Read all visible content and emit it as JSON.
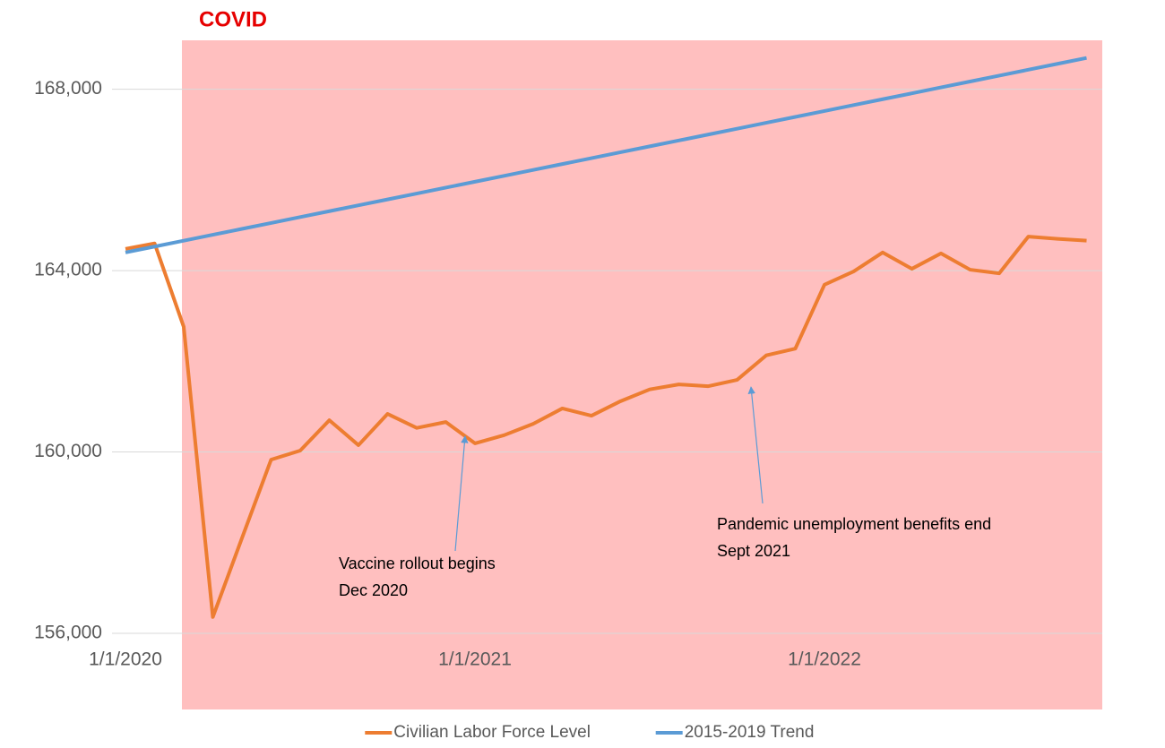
{
  "chart_data": {
    "type": "line",
    "title": "COVID",
    "categories": [
      "1/1/2020",
      null,
      null,
      null,
      null,
      null,
      null,
      null,
      null,
      null,
      null,
      null,
      "1/1/2021",
      null,
      null,
      null,
      null,
      null,
      null,
      null,
      null,
      null,
      null,
      null,
      "1/1/2022",
      null,
      null,
      null,
      null,
      null,
      null,
      null,
      null,
      null
    ],
    "series": [
      {
        "name": "Civilian Labor Force Level",
        "color": "#ed7d31",
        "values": [
          164480,
          164600,
          162760,
          156360,
          158100,
          159830,
          160030,
          160700,
          160150,
          160840,
          160530,
          160660,
          160190,
          160370,
          160620,
          160960,
          160800,
          161120,
          161380,
          161490,
          161450,
          161590,
          162130,
          162280,
          163690,
          163980,
          164400,
          164040,
          164380,
          164020,
          163940,
          164750,
          164700,
          164660
        ]
      },
      {
        "name": "2015-2019 Trend",
        "color": "#5b9bd5",
        "values": [
          164400,
          164530,
          164660,
          164790,
          164920,
          165050,
          165180,
          165310,
          165440,
          165570,
          165700,
          165830,
          165960,
          166090,
          166220,
          166350,
          166480,
          166610,
          166740,
          166870,
          167000,
          167130,
          167260,
          167390,
          167520,
          167650,
          167780,
          167910,
          168040,
          168170,
          168300,
          168430,
          168560,
          168690
        ]
      }
    ],
    "ylim": [
      156000,
      169000
    ],
    "yticks": [
      {
        "value": 156000,
        "label": "156,000"
      },
      {
        "value": 160000,
        "label": "160,000"
      },
      {
        "value": 164000,
        "label": "164,000"
      },
      {
        "value": 168000,
        "label": "168,000"
      }
    ],
    "grid": true,
    "legend": "bottom",
    "annotations": [
      {
        "lines": [
          "Vaccine rollout begins",
          "Dec 2020"
        ]
      },
      {
        "lines": [
          "Pandemic unemployment benefits end",
          "Sept 2021"
        ]
      }
    ]
  }
}
